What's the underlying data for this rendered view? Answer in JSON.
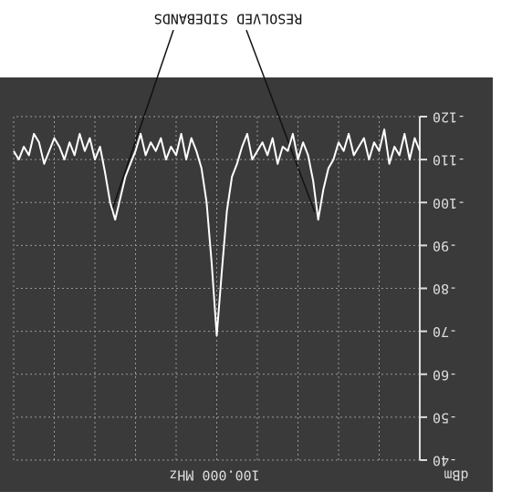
{
  "chart_data": {
    "type": "line",
    "annotation": "RESOLVED SIDEBANDS",
    "y_label": "dBm",
    "center_frequency": "100.000 MHz",
    "ylim": [
      -120,
      -40
    ],
    "yticks": [
      -40,
      -50,
      -60,
      -70,
      -80,
      -90,
      -100,
      -110,
      -120
    ],
    "grid": true,
    "series": [
      {
        "color": "#ffffff",
        "values": [
          -112,
          -115,
          -110,
          -116,
          -111,
          -113,
          -109,
          -117,
          -112,
          -114,
          -110,
          -115,
          -113,
          -111,
          -116,
          -112,
          -114,
          -110,
          -108,
          -103,
          -96,
          -105,
          -111,
          -114,
          -110,
          -116,
          -112,
          -113,
          -109,
          -115,
          -111,
          -114,
          -112,
          -110,
          -116,
          -113,
          -109,
          -106,
          -98,
          -84,
          -69,
          -86,
          -100,
          -108,
          -112,
          -115,
          -110,
          -116,
          -111,
          -113,
          -110,
          -115,
          -112,
          -114,
          -111,
          -116,
          -112,
          -109,
          -106,
          -101,
          -96,
          -100,
          -107,
          -113,
          -110,
          -115,
          -112,
          -116,
          -111,
          -114,
          -110,
          -113,
          -115,
          -112,
          -109,
          -114,
          -116,
          -111,
          -113,
          -110,
          -112
        ]
      }
    ]
  }
}
